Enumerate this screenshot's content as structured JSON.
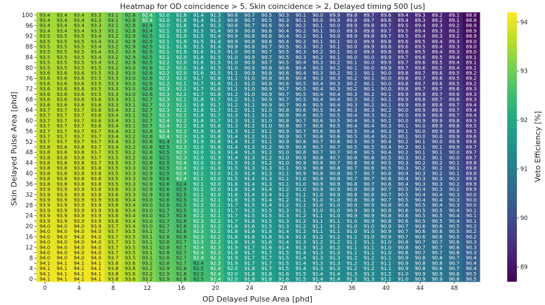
{
  "chart_data": {
    "type": "heatmap",
    "title": "Heatmap for OD coincidence > 5, Skin coincidence > 2, Delayed timing 500 [us]",
    "xlabel": "OD Delayed Pulse Area [phd]",
    "ylabel": "Skin Delayed Pulse Area [phd]",
    "colorbar_label": "Veto Efficiency [%]",
    "colorbar_ticks": [
      "89",
      "90",
      "91",
      "92",
      "93",
      "94"
    ],
    "colorbar_range": [
      88.7,
      94.2
    ],
    "colormap": "viridis",
    "x": [
      0,
      2,
      4,
      6,
      8,
      10,
      12,
      14,
      16,
      18,
      20,
      22,
      24,
      26,
      28,
      30,
      32,
      34,
      36,
      38,
      40,
      42,
      44,
      46,
      48,
      50
    ],
    "y": [
      0,
      2,
      4,
      6,
      8,
      10,
      12,
      14,
      16,
      18,
      20,
      22,
      24,
      26,
      28,
      30,
      32,
      34,
      36,
      38,
      40,
      42,
      44,
      46,
      48,
      50,
      52,
      54,
      56,
      58,
      60,
      62,
      64,
      66,
      68,
      70,
      72,
      74,
      76,
      78,
      80,
      82,
      84,
      86,
      88,
      90,
      92,
      94,
      96,
      98,
      100
    ],
    "row_top_label": [
      93.4,
      93.4,
      93.4,
      93.3,
      93.1,
      92.8,
      92.4,
      92.0,
      91.8,
      91.4,
      91.3,
      90.8,
      90.7,
      90.5,
      90.3,
      90.1,
      90.0,
      89.9,
      89.8,
      89.7,
      89.6,
      89.4,
      89.3,
      89.2,
      89.1,
      88.8
    ],
    "row_bottom_label": [
      94.1,
      94.1,
      94.1,
      94.1,
      93.8,
      93.6,
      93.2,
      92.9,
      92.8,
      92.5,
      92.4,
      92.0,
      91.8,
      91.8,
      91.6,
      91.5,
      91.4,
      91.4,
      91.3,
      91.3,
      91.2,
      91.0,
      90.9,
      90.9,
      90.8,
      90.5
    ]
  }
}
